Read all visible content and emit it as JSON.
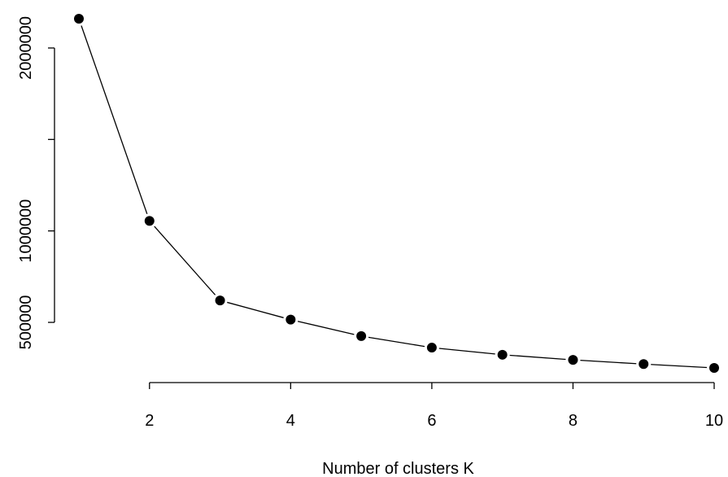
{
  "chart_data": {
    "type": "line",
    "title": "",
    "xlabel": "Number of clusters K",
    "ylabel": "",
    "x": [
      1,
      2,
      3,
      4,
      5,
      6,
      7,
      8,
      9,
      10
    ],
    "series": [
      {
        "values": [
          2160000,
          1055000,
          620000,
          515000,
          425000,
          362000,
          323000,
          295000,
          272000,
          251000
        ]
      }
    ],
    "xticks": [
      2,
      4,
      6,
      8,
      10
    ],
    "xtick_labels": [
      "2",
      "4",
      "6",
      "8",
      "10"
    ],
    "yticks": [
      500000,
      1000000,
      1500000,
      2000000
    ],
    "ytick_labels": [
      "500000",
      "1000000",
      "",
      "2000000"
    ],
    "xlim": [
      1,
      10
    ],
    "ylim": [
      251000,
      2160000
    ],
    "grid": false,
    "marker": "filled-circle",
    "line_color": "#000000"
  }
}
